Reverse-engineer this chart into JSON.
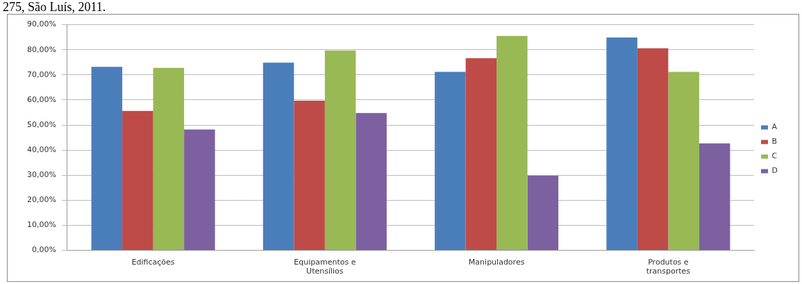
{
  "chart_data": {
    "type": "bar",
    "annotations": [
      "275, São Luís, 2011."
    ],
    "categories": [
      "Edificações",
      "Equipamentos e Utensílios",
      "Manipuladores",
      "Produtos e transportes"
    ],
    "series": [
      {
        "name": "A",
        "color": "#4a7ebb",
        "values": [
          73.2,
          74.9,
          71.2,
          84.9
        ]
      },
      {
        "name": "B",
        "color": "#be4b48",
        "values": [
          55.6,
          59.7,
          76.7,
          80.6
        ]
      },
      {
        "name": "C",
        "color": "#98b954",
        "values": [
          72.8,
          79.7,
          85.5,
          71.2
        ]
      },
      {
        "name": "D",
        "color": "#7d60a0",
        "values": [
          48.2,
          54.8,
          29.8,
          42.7
        ]
      }
    ],
    "ylim": [
      0,
      90
    ],
    "yticks": [
      {
        "value": 0,
        "label": "0,00%"
      },
      {
        "value": 10,
        "label": "10,00%"
      },
      {
        "value": 20,
        "label": "20,00%"
      },
      {
        "value": 30,
        "label": "30,00%"
      },
      {
        "value": 40,
        "label": "40,00%"
      },
      {
        "value": 50,
        "label": "50,00%"
      },
      {
        "value": 60,
        "label": "60,00%"
      },
      {
        "value": 70,
        "label": "70,00%"
      },
      {
        "value": 80,
        "label": "80,00%"
      },
      {
        "value": 90,
        "label": "90,00%"
      }
    ],
    "grid": "y",
    "legend": "right"
  }
}
